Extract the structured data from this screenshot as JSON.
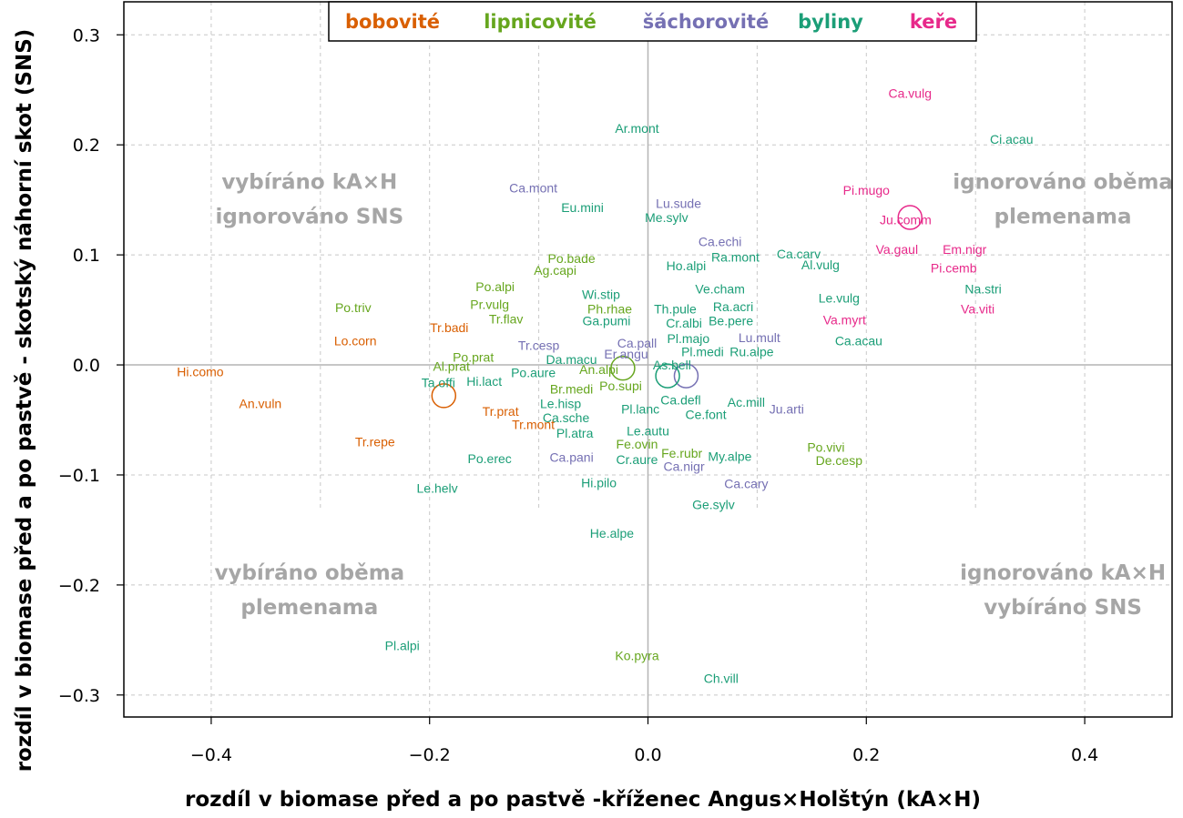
{
  "chart_data": {
    "type": "scatter",
    "xlabel": "rozdíl v biomase před a po pastvě -kříženec Angus×Holštýn (kA×H)",
    "ylabel": "rozdíl v biomase před a po pastvě - skotský náhorní skot (SNS)",
    "xlim": [
      -0.48,
      0.48
    ],
    "ylim": [
      -0.32,
      0.33
    ],
    "xticks": [
      -0.4,
      -0.2,
      0.0,
      0.2,
      0.4
    ],
    "xtick_labels": [
      "−0.4",
      "−0.2",
      "0.0",
      "0.2",
      "0.4"
    ],
    "yticks": [
      -0.3,
      -0.2,
      -0.1,
      0.0,
      0.1,
      0.2,
      0.3
    ],
    "ytick_labels": [
      "−0.3",
      "−0.2",
      "−0.1",
      "0.0",
      "0.1",
      "0.2",
      "0.3"
    ],
    "grid": true,
    "legend_position": "top-center",
    "groups": [
      {
        "name": "bobovité",
        "color": "#d95f02"
      },
      {
        "name": "lipnicovité",
        "color": "#66a61e"
      },
      {
        "name": "šáchorovité",
        "color": "#7570b3"
      },
      {
        "name": "byliny",
        "color": "#1b9e77"
      },
      {
        "name": "keře",
        "color": "#e7298a"
      }
    ],
    "quadrant_labels": [
      {
        "line1": "vybíráno kA×H",
        "line2": "ignorováno SNS",
        "x": -0.31,
        "y": 0.155
      },
      {
        "line1": "ignorováno oběma",
        "line2": "plemenama",
        "x": 0.38,
        "y": 0.155
      },
      {
        "line1": "vybíráno oběma",
        "line2": "plemenama",
        "x": -0.31,
        "y": -0.2
      },
      {
        "line1": "ignorováno kA×H",
        "line2": "vybíráno SNS",
        "x": 0.38,
        "y": -0.2
      }
    ],
    "group_centroids": [
      {
        "group": "bobovité",
        "x": -0.187,
        "y": -0.028
      },
      {
        "group": "lipnicovité",
        "x": -0.023,
        "y": -0.003
      },
      {
        "group": "šáchorovité",
        "x": 0.035,
        "y": -0.01
      },
      {
        "group": "byliny",
        "x": 0.018,
        "y": -0.01
      },
      {
        "group": "keře",
        "x": 0.24,
        "y": 0.134
      }
    ],
    "points": [
      {
        "label": "Ca.vulg",
        "x": 0.24,
        "y": 0.247,
        "group": "keře"
      },
      {
        "label": "Ci.acau",
        "x": 0.333,
        "y": 0.205,
        "group": "byliny"
      },
      {
        "label": "Ar.mont",
        "x": -0.01,
        "y": 0.215,
        "group": "byliny"
      },
      {
        "label": "Ca.mont",
        "x": -0.105,
        "y": 0.161,
        "group": "šáchorovité"
      },
      {
        "label": "Eu.mini",
        "x": -0.06,
        "y": 0.143,
        "group": "byliny"
      },
      {
        "label": "Lu.sude",
        "x": 0.028,
        "y": 0.147,
        "group": "šáchorovité"
      },
      {
        "label": "Me.sylv",
        "x": 0.017,
        "y": 0.134,
        "group": "byliny"
      },
      {
        "label": "Pi.mugo",
        "x": 0.2,
        "y": 0.159,
        "group": "keře"
      },
      {
        "label": "Ju.comm",
        "x": 0.236,
        "y": 0.132,
        "group": "keře"
      },
      {
        "label": "Ca.echi",
        "x": 0.066,
        "y": 0.112,
        "group": "šáchorovité"
      },
      {
        "label": "Ra.mont",
        "x": 0.08,
        "y": 0.098,
        "group": "byliny"
      },
      {
        "label": "Ca.carv",
        "x": 0.138,
        "y": 0.101,
        "group": "byliny"
      },
      {
        "label": "Al.vulg",
        "x": 0.158,
        "y": 0.091,
        "group": "byliny"
      },
      {
        "label": "Va.gaul",
        "x": 0.228,
        "y": 0.105,
        "group": "keře"
      },
      {
        "label": "Em.nigr",
        "x": 0.29,
        "y": 0.105,
        "group": "keře"
      },
      {
        "label": "Pi.cemb",
        "x": 0.28,
        "y": 0.088,
        "group": "keře"
      },
      {
        "label": "Po.bade",
        "x": -0.07,
        "y": 0.097,
        "group": "lipnicovité"
      },
      {
        "label": "Ag.capi",
        "x": -0.085,
        "y": 0.086,
        "group": "lipnicovité"
      },
      {
        "label": "Ho.alpi",
        "x": 0.035,
        "y": 0.09,
        "group": "byliny"
      },
      {
        "label": "Po.alpi",
        "x": -0.14,
        "y": 0.071,
        "group": "lipnicovité"
      },
      {
        "label": "Wi.stip",
        "x": -0.043,
        "y": 0.064,
        "group": "byliny"
      },
      {
        "label": "Ve.cham",
        "x": 0.066,
        "y": 0.069,
        "group": "byliny"
      },
      {
        "label": "Le.vulg",
        "x": 0.175,
        "y": 0.061,
        "group": "byliny"
      },
      {
        "label": "Na.stri",
        "x": 0.307,
        "y": 0.069,
        "group": "byliny"
      },
      {
        "label": "Po.triv",
        "x": -0.27,
        "y": 0.052,
        "group": "lipnicovité"
      },
      {
        "label": "Pr.vulg",
        "x": -0.145,
        "y": 0.055,
        "group": "lipnicovité"
      },
      {
        "label": "Ph.rhae",
        "x": -0.035,
        "y": 0.051,
        "group": "lipnicovité"
      },
      {
        "label": "Th.pule",
        "x": 0.025,
        "y": 0.051,
        "group": "byliny"
      },
      {
        "label": "Ra.acri",
        "x": 0.078,
        "y": 0.053,
        "group": "byliny"
      },
      {
        "label": "Va.viti",
        "x": 0.302,
        "y": 0.051,
        "group": "keře"
      },
      {
        "label": "Tr.flav",
        "x": -0.13,
        "y": 0.042,
        "group": "lipnicovité"
      },
      {
        "label": "Ga.pumi",
        "x": -0.038,
        "y": 0.04,
        "group": "byliny"
      },
      {
        "label": "Cr.albi",
        "x": 0.033,
        "y": 0.038,
        "group": "byliny"
      },
      {
        "label": "Be.pere",
        "x": 0.076,
        "y": 0.04,
        "group": "byliny"
      },
      {
        "label": "Va.myrt",
        "x": 0.18,
        "y": 0.041,
        "group": "keře"
      },
      {
        "label": "Tr.badi",
        "x": -0.182,
        "y": 0.034,
        "group": "bobovité"
      },
      {
        "label": "Lo.corn",
        "x": -0.268,
        "y": 0.022,
        "group": "bobovité"
      },
      {
        "label": "Pl.majo",
        "x": 0.037,
        "y": 0.024,
        "group": "byliny"
      },
      {
        "label": "Lu.mult",
        "x": 0.102,
        "y": 0.025,
        "group": "šáchorovité"
      },
      {
        "label": "Ca.acau",
        "x": 0.193,
        "y": 0.022,
        "group": "byliny"
      },
      {
        "label": "Tr.cesp",
        "x": -0.1,
        "y": 0.018,
        "group": "šáchorovité"
      },
      {
        "label": "Ca.pall",
        "x": -0.01,
        "y": 0.02,
        "group": "šáchorovité"
      },
      {
        "label": "Pl.medi",
        "x": 0.05,
        "y": 0.012,
        "group": "byliny"
      },
      {
        "label": "Ru.alpe",
        "x": 0.095,
        "y": 0.012,
        "group": "byliny"
      },
      {
        "label": "Er.angu",
        "x": -0.02,
        "y": 0.01,
        "group": "šáchorovité"
      },
      {
        "label": "Po.prat",
        "x": -0.16,
        "y": 0.007,
        "group": "lipnicovité"
      },
      {
        "label": "Da.macu",
        "x": -0.07,
        "y": 0.005,
        "group": "byliny"
      },
      {
        "label": "As.bell",
        "x": 0.022,
        "y": 0.0,
        "group": "byliny"
      },
      {
        "label": "Al.prat",
        "x": -0.18,
        "y": -0.001,
        "group": "lipnicovité"
      },
      {
        "label": "Hi.como",
        "x": -0.41,
        "y": -0.006,
        "group": "bobovité"
      },
      {
        "label": "Po.aure",
        "x": -0.105,
        "y": -0.007,
        "group": "byliny"
      },
      {
        "label": "An.alpi",
        "x": -0.045,
        "y": -0.004,
        "group": "lipnicovité"
      },
      {
        "label": "Ta.offi",
        "x": -0.192,
        "y": -0.016,
        "group": "byliny"
      },
      {
        "label": "Hi.lact",
        "x": -0.15,
        "y": -0.015,
        "group": "byliny"
      },
      {
        "label": "Po.supi",
        "x": -0.025,
        "y": -0.019,
        "group": "lipnicovité"
      },
      {
        "label": "Br.medi",
        "x": -0.07,
        "y": -0.022,
        "group": "lipnicovité"
      },
      {
        "label": "An.vuln",
        "x": -0.355,
        "y": -0.035,
        "group": "bobovité"
      },
      {
        "label": "Le.hisp",
        "x": -0.08,
        "y": -0.035,
        "group": "byliny"
      },
      {
        "label": "Ca.defl",
        "x": 0.03,
        "y": -0.032,
        "group": "byliny"
      },
      {
        "label": "Ac.mill",
        "x": 0.09,
        "y": -0.034,
        "group": "byliny"
      },
      {
        "label": "Ju.arti",
        "x": 0.127,
        "y": -0.04,
        "group": "šáchorovité"
      },
      {
        "label": "Tr.prat",
        "x": -0.135,
        "y": -0.042,
        "group": "bobovité"
      },
      {
        "label": "Pl.lanc",
        "x": -0.007,
        "y": -0.04,
        "group": "byliny"
      },
      {
        "label": "Ce.font",
        "x": 0.053,
        "y": -0.045,
        "group": "byliny"
      },
      {
        "label": "Ca.sche",
        "x": -0.075,
        "y": -0.048,
        "group": "byliny"
      },
      {
        "label": "Tr.mont",
        "x": -0.105,
        "y": -0.054,
        "group": "bobovité"
      },
      {
        "label": "Pl.atra",
        "x": -0.067,
        "y": -0.062,
        "group": "byliny"
      },
      {
        "label": "Le.autu",
        "x": 0.0,
        "y": -0.06,
        "group": "byliny"
      },
      {
        "label": "Tr.repe",
        "x": -0.25,
        "y": -0.07,
        "group": "bobovité"
      },
      {
        "label": "Fe.ovin",
        "x": -0.01,
        "y": -0.072,
        "group": "lipnicovité"
      },
      {
        "label": "Po.vivi",
        "x": 0.163,
        "y": -0.075,
        "group": "lipnicovité"
      },
      {
        "label": "Fe.rubr",
        "x": 0.031,
        "y": -0.08,
        "group": "lipnicovité"
      },
      {
        "label": "Po.erec",
        "x": -0.145,
        "y": -0.085,
        "group": "byliny"
      },
      {
        "label": "Ca.pani",
        "x": -0.07,
        "y": -0.084,
        "group": "šáchorovité"
      },
      {
        "label": "Cr.aure",
        "x": -0.01,
        "y": -0.086,
        "group": "byliny"
      },
      {
        "label": "My.alpe",
        "x": 0.075,
        "y": -0.083,
        "group": "byliny"
      },
      {
        "label": "De.cesp",
        "x": 0.175,
        "y": -0.087,
        "group": "lipnicovité"
      },
      {
        "label": "Ca.nigr",
        "x": 0.033,
        "y": -0.092,
        "group": "šáchorovité"
      },
      {
        "label": "Le.helv",
        "x": -0.193,
        "y": -0.112,
        "group": "byliny"
      },
      {
        "label": "Hi.pilo",
        "x": -0.045,
        "y": -0.107,
        "group": "byliny"
      },
      {
        "label": "Ca.cary",
        "x": 0.09,
        "y": -0.108,
        "group": "šáchorovité"
      },
      {
        "label": "Ge.sylv",
        "x": 0.06,
        "y": -0.127,
        "group": "byliny"
      },
      {
        "label": "He.alpe",
        "x": -0.033,
        "y": -0.153,
        "group": "byliny"
      },
      {
        "label": "Pl.alpi",
        "x": -0.225,
        "y": -0.255,
        "group": "byliny"
      },
      {
        "label": "Ko.pyra",
        "x": -0.01,
        "y": -0.264,
        "group": "lipnicovité"
      },
      {
        "label": "Ch.vill",
        "x": 0.067,
        "y": -0.285,
        "group": "byliny"
      }
    ]
  }
}
